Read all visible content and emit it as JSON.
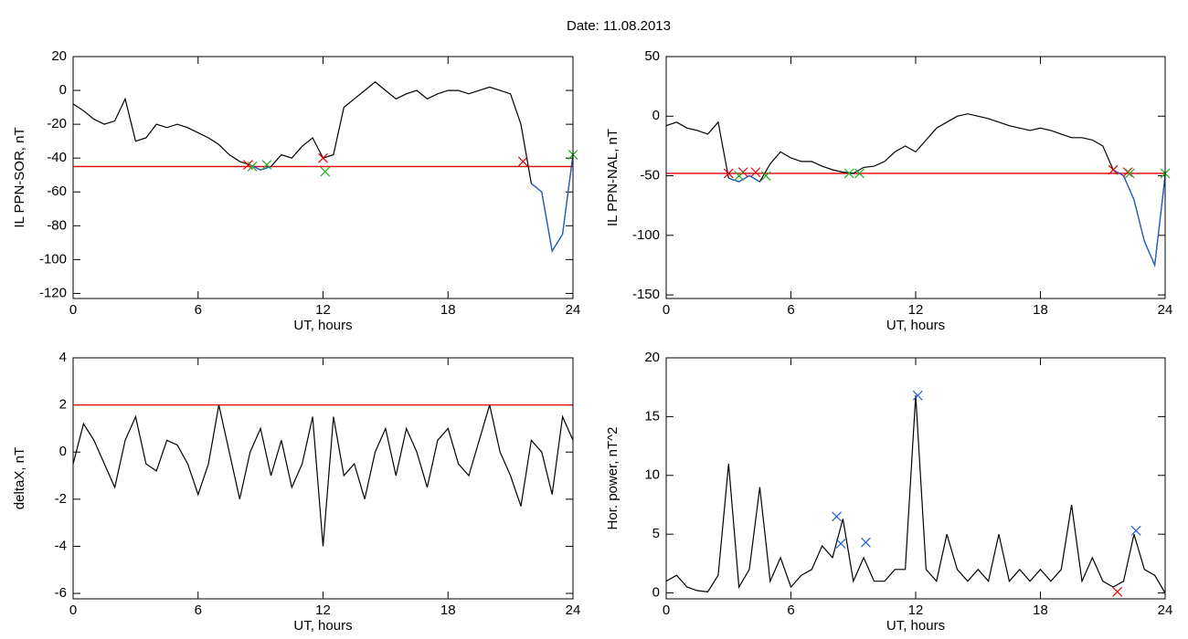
{
  "title": "Date:  11.08.2013",
  "chart_data": [
    {
      "type": "line",
      "ylabel": "IL PPN-SOR, nT",
      "xlabel": "UT, hours",
      "xlim": [
        0,
        24
      ],
      "xticks": [
        0,
        6,
        12,
        18,
        24
      ],
      "ylim": [
        -123,
        20
      ],
      "yticks": [
        20,
        0,
        -20,
        -40,
        -60,
        -80,
        -100,
        -120
      ],
      "x": [
        0,
        0.5,
        1,
        1.5,
        2,
        2.5,
        3,
        3.5,
        4,
        4.5,
        5,
        5.5,
        6,
        6.5,
        7,
        7.5,
        8,
        8.5,
        9,
        9.5,
        10,
        10.5,
        11,
        11.5,
        12,
        12.5,
        13,
        13.5,
        14,
        14.5,
        15,
        15.5,
        16,
        16.5,
        17,
        17.5,
        18,
        18.5,
        19,
        19.5,
        20,
        20.5,
        21,
        21.5,
        22,
        22.5,
        23,
        23.5,
        24
      ],
      "series": [
        {
          "color": "#000000",
          "values": [
            -8,
            -12,
            -17,
            -20,
            -18,
            -5,
            -30,
            -28,
            -20,
            -22,
            -20,
            -22,
            -25,
            -28,
            -32,
            -38,
            -42,
            -44,
            -47,
            -45,
            -38,
            -40,
            -33,
            -28,
            -40,
            -38,
            -10,
            -5,
            0,
            5,
            0,
            -5,
            -2,
            0,
            -5,
            -2,
            0,
            0,
            -2,
            0,
            2,
            0,
            -2,
            -20,
            -55,
            -60,
            -95,
            -85,
            -38
          ]
        },
        {
          "color": "#1f5fd0",
          "values": [
            null,
            null,
            null,
            null,
            null,
            null,
            null,
            null,
            null,
            null,
            null,
            null,
            null,
            null,
            null,
            null,
            null,
            -44,
            -47,
            -45,
            null,
            null,
            null,
            null,
            null,
            null,
            null,
            null,
            null,
            null,
            null,
            null,
            null,
            null,
            null,
            null,
            null,
            null,
            null,
            null,
            null,
            null,
            null,
            null,
            -55,
            -60,
            -95,
            -85,
            -38
          ]
        }
      ],
      "threshold": -45,
      "threshold_color": "#e00000",
      "markers": [
        {
          "x": 8.4,
          "y": -44,
          "color": "#e00000"
        },
        {
          "x": 12,
          "y": -40,
          "color": "#e00000"
        },
        {
          "x": 21.6,
          "y": -42,
          "color": "#e00000"
        },
        {
          "x": 8.6,
          "y": -45,
          "color": "#20b020"
        },
        {
          "x": 9.3,
          "y": -44,
          "color": "#20b020"
        },
        {
          "x": 12.1,
          "y": -48,
          "color": "#20b020"
        },
        {
          "x": 24,
          "y": -38,
          "color": "#20b020"
        }
      ]
    },
    {
      "type": "line",
      "ylabel": "IL PPN-NAL, nT",
      "xlabel": "UT, hours",
      "xlim": [
        0,
        24
      ],
      "xticks": [
        0,
        6,
        12,
        18,
        24
      ],
      "ylim": [
        -153,
        50
      ],
      "yticks": [
        50,
        0,
        -50,
        -100,
        -150
      ],
      "x": [
        0,
        0.5,
        1,
        1.5,
        2,
        2.5,
        3,
        3.5,
        4,
        4.5,
        5,
        5.5,
        6,
        6.5,
        7,
        7.5,
        8,
        8.5,
        9,
        9.5,
        10,
        10.5,
        11,
        11.5,
        12,
        12.5,
        13,
        13.5,
        14,
        14.5,
        15,
        15.5,
        16,
        16.5,
        17,
        17.5,
        18,
        18.5,
        19,
        19.5,
        20,
        20.5,
        21,
        21.5,
        22,
        22.5,
        23,
        23.5,
        24
      ],
      "series": [
        {
          "color": "#000000",
          "values": [
            -8,
            -5,
            -10,
            -12,
            -15,
            -5,
            -52,
            -55,
            -50,
            -55,
            -40,
            -30,
            -35,
            -38,
            -38,
            -42,
            -45,
            -47,
            -48,
            -43,
            -42,
            -38,
            -30,
            -25,
            -30,
            -20,
            -10,
            -5,
            0,
            2,
            0,
            -2,
            -5,
            -8,
            -10,
            -12,
            -10,
            -12,
            -15,
            -18,
            -18,
            -20,
            -25,
            -45,
            -50,
            -70,
            -105,
            -125,
            -50
          ]
        },
        {
          "color": "#1f5fd0",
          "values": [
            null,
            null,
            null,
            null,
            null,
            null,
            -52,
            -55,
            -50,
            -55,
            null,
            null,
            null,
            null,
            null,
            null,
            null,
            null,
            null,
            null,
            null,
            null,
            null,
            null,
            null,
            null,
            null,
            null,
            null,
            null,
            null,
            null,
            null,
            null,
            null,
            null,
            null,
            null,
            null,
            null,
            null,
            null,
            null,
            -45,
            -50,
            -70,
            -105,
            -125,
            -50
          ]
        }
      ],
      "threshold": -48,
      "threshold_color": "#e00000",
      "markers": [
        {
          "x": 3,
          "y": -48,
          "color": "#e00000"
        },
        {
          "x": 3.7,
          "y": -47,
          "color": "#e00000"
        },
        {
          "x": 4.3,
          "y": -47,
          "color": "#e00000"
        },
        {
          "x": 21.5,
          "y": -45,
          "color": "#e00000"
        },
        {
          "x": 22.2,
          "y": -47,
          "color": "#e00000"
        },
        {
          "x": 3.5,
          "y": -50,
          "color": "#20b020"
        },
        {
          "x": 4.8,
          "y": -50,
          "color": "#20b020"
        },
        {
          "x": 8.8,
          "y": -48,
          "color": "#20b020"
        },
        {
          "x": 9.3,
          "y": -48,
          "color": "#20b020"
        },
        {
          "x": 22.3,
          "y": -48,
          "color": "#20b020"
        },
        {
          "x": 24,
          "y": -48,
          "color": "#20b020"
        }
      ]
    },
    {
      "type": "line",
      "ylabel": "deltaX, nT",
      "xlabel": "UT, hours",
      "xlim": [
        0,
        24
      ],
      "xticks": [
        0,
        6,
        12,
        18,
        24
      ],
      "ylim": [
        -6.23,
        4
      ],
      "yticks": [
        4,
        2,
        0,
        -2,
        -4,
        -6
      ],
      "x": [
        0,
        0.5,
        1,
        1.5,
        2,
        2.5,
        3,
        3.5,
        4,
        4.5,
        5,
        5.5,
        6,
        6.5,
        7,
        7.5,
        8,
        8.5,
        9,
        9.5,
        10,
        10.5,
        11,
        11.5,
        12,
        12.5,
        13,
        13.5,
        14,
        14.5,
        15,
        15.5,
        16,
        16.5,
        17,
        17.5,
        18,
        18.5,
        19,
        19.5,
        20,
        20.5,
        21,
        21.5,
        22,
        22.5,
        23,
        23.5,
        24
      ],
      "series": [
        {
          "color": "#000000",
          "values": [
            -0.5,
            1.2,
            0.5,
            -0.5,
            -1.5,
            0.5,
            1.5,
            -0.5,
            -0.8,
            0.5,
            0.3,
            -0.5,
            -1.8,
            -0.5,
            2,
            0,
            -2,
            0,
            1,
            -1,
            0.5,
            -1.5,
            -0.5,
            1.5,
            -4,
            1.5,
            -1,
            -0.5,
            -2,
            0,
            1,
            -1,
            1,
            0,
            -1.5,
            0.5,
            1,
            -0.5,
            -1,
            0.5,
            2,
            0,
            -1,
            -2.3,
            0.5,
            0,
            -1.8,
            1.5,
            0.5
          ]
        }
      ],
      "threshold": 2,
      "threshold_color": "#e00000",
      "markers": []
    },
    {
      "type": "line",
      "ylabel": "Hor. power, nT^2",
      "xlabel": "UT, hours",
      "xlim": [
        0,
        24
      ],
      "xticks": [
        0,
        6,
        12,
        18,
        24
      ],
      "ylim": [
        -0.5,
        20
      ],
      "yticks": [
        20,
        15,
        10,
        5,
        0
      ],
      "x": [
        0,
        0.5,
        1,
        1.5,
        2,
        2.5,
        3,
        3.5,
        4,
        4.5,
        5,
        5.5,
        6,
        6.5,
        7,
        7.5,
        8,
        8.5,
        9,
        9.5,
        10,
        10.5,
        11,
        11.5,
        12,
        12.5,
        13,
        13.5,
        14,
        14.5,
        15,
        15.5,
        16,
        16.5,
        17,
        17.5,
        18,
        18.5,
        19,
        19.5,
        20,
        20.5,
        21,
        21.5,
        22,
        22.5,
        23,
        23.5,
        24
      ],
      "series": [
        {
          "color": "#000000",
          "values": [
            1,
            1.5,
            0.5,
            0.2,
            0.1,
            1.5,
            11,
            0.5,
            2,
            9,
            1,
            3,
            0.5,
            1.5,
            2,
            4,
            3,
            6.3,
            1,
            3,
            1,
            1,
            2,
            2,
            16.8,
            2,
            1,
            5,
            2,
            1,
            2,
            1,
            5,
            1,
            2,
            1,
            2,
            1,
            2,
            7.5,
            1,
            3,
            1,
            0.5,
            1,
            5,
            2,
            1.5,
            0
          ]
        }
      ],
      "markers": [
        {
          "x": 8.2,
          "y": 6.5,
          "color": "#1f5fd0"
        },
        {
          "x": 8.4,
          "y": 4.2,
          "color": "#1f5fd0"
        },
        {
          "x": 9.6,
          "y": 4.3,
          "color": "#1f5fd0"
        },
        {
          "x": 12.1,
          "y": 16.8,
          "color": "#1f5fd0"
        },
        {
          "x": 22.6,
          "y": 5.3,
          "color": "#1f5fd0"
        },
        {
          "x": 21.7,
          "y": 0.1,
          "color": "#e00000"
        }
      ]
    }
  ]
}
